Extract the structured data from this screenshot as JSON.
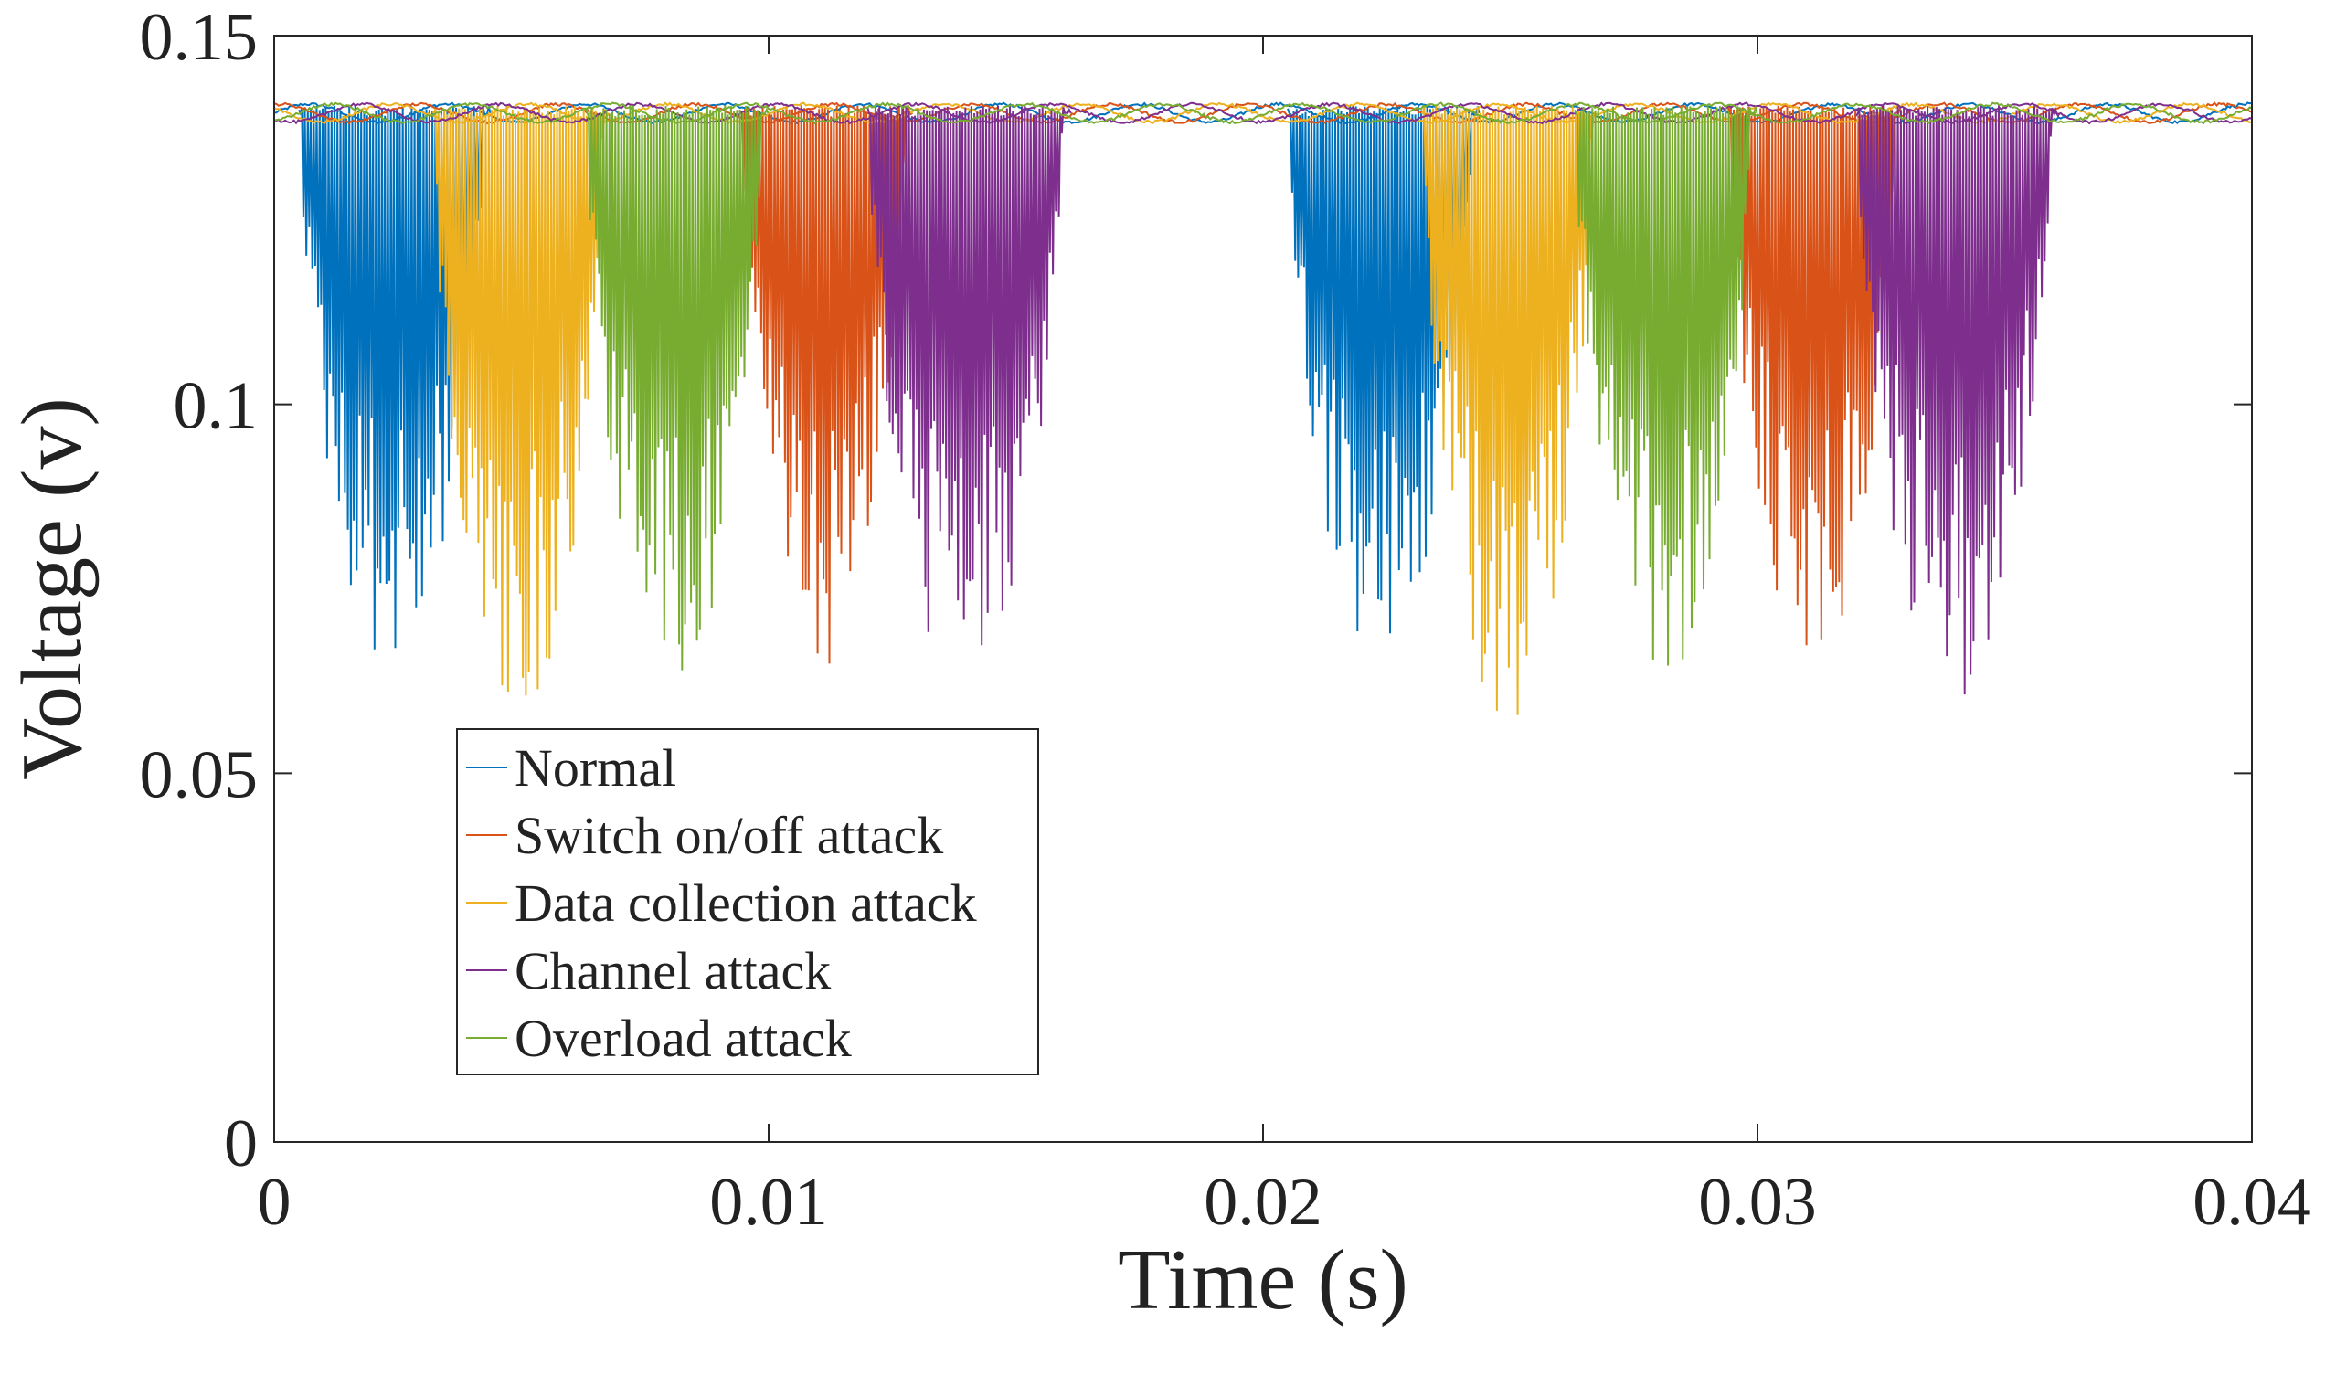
{
  "chart_data": {
    "type": "line",
    "title": "",
    "xlabel": "Time (s)",
    "ylabel": "Voltage (v)",
    "xlim": [
      0,
      0.04
    ],
    "ylim": [
      0,
      0.15
    ],
    "grid": false,
    "legend_location": "lower-left",
    "x_ticks": [
      {
        "value": 0,
        "label": "0"
      },
      {
        "value": 0.01,
        "label": "0.01"
      },
      {
        "value": 0.02,
        "label": "0.02"
      },
      {
        "value": 0.03,
        "label": "0.03"
      },
      {
        "value": 0.04,
        "label": "0.04"
      }
    ],
    "y_ticks": [
      {
        "value": 0,
        "label": "0"
      },
      {
        "value": 0.05,
        "label": "0.05"
      },
      {
        "value": 0.1,
        "label": "0.1"
      },
      {
        "value": 0.15,
        "label": "0.15"
      }
    ],
    "baseline_voltage": 0.1395,
    "series": [
      {
        "name": "Normal",
        "color": "#0072BD",
        "active_windows": [
          [
            0.0005,
            0.0044
          ],
          [
            0.0205,
            0.0244
          ]
        ],
        "min_voltage": 0.064
      },
      {
        "name": "Switch on/off attack",
        "color": "#D95319",
        "active_windows": [
          [
            0.0094,
            0.0129
          ],
          [
            0.0294,
            0.0329
          ]
        ],
        "min_voltage": 0.064
      },
      {
        "name": "Data collection attack",
        "color": "#EDB120",
        "active_windows": [
          [
            0.0032,
            0.0068
          ],
          [
            0.0232,
            0.0268
          ]
        ],
        "min_voltage": 0.056
      },
      {
        "name": "Channel attack",
        "color": "#7E2F8E",
        "active_windows": [
          [
            0.012,
            0.0161
          ],
          [
            0.032,
            0.0361
          ]
        ],
        "min_voltage": 0.06
      },
      {
        "name": "Overload attack",
        "color": "#77AC30",
        "active_windows": [
          [
            0.0063,
            0.01
          ],
          [
            0.0263,
            0.03
          ]
        ],
        "min_voltage": 0.062
      }
    ]
  }
}
